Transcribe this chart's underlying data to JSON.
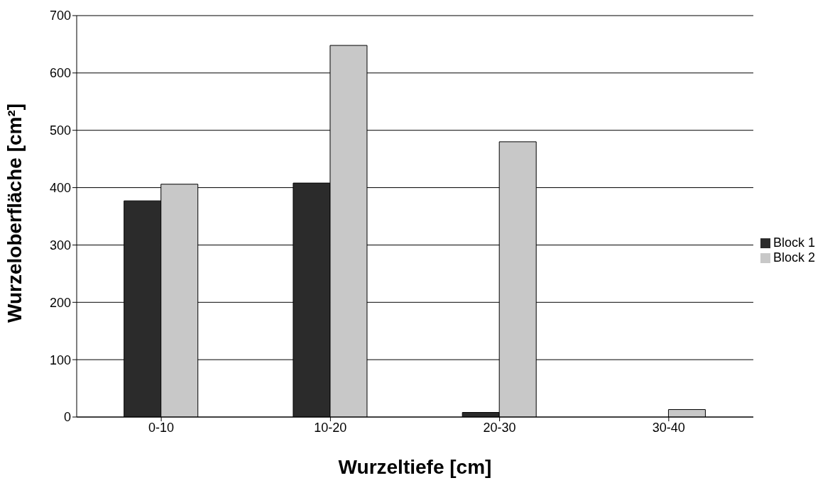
{
  "chart_data": {
    "type": "bar",
    "xlabel": "Wurzeltiefe [cm]",
    "ylabel": "Wurzeloberfläche [cm²]",
    "categories": [
      "0-10",
      "10-20",
      "20-30",
      "30-40"
    ],
    "series": [
      {
        "name": "Block 1",
        "color": "#2b2b2b",
        "values": [
          377,
          408,
          8,
          0
        ]
      },
      {
        "name": "Block 2",
        "color": "#c8c8c8",
        "values": [
          406,
          648,
          480,
          13
        ]
      }
    ],
    "ylim": [
      0,
      700
    ],
    "yticks": [
      0,
      100,
      200,
      300,
      400,
      500,
      600,
      700
    ],
    "grid": "y",
    "legend": "right"
  }
}
